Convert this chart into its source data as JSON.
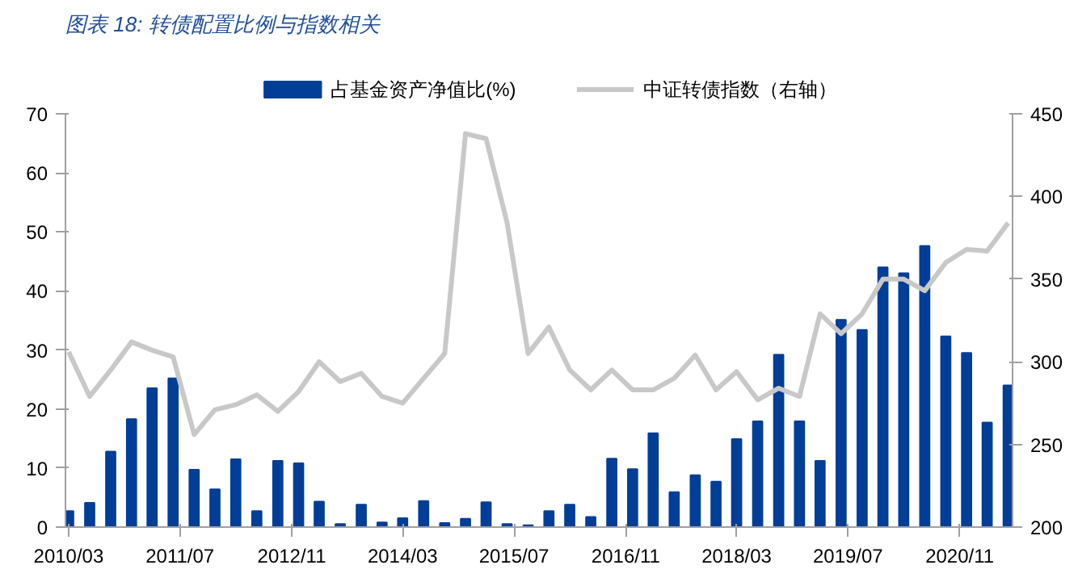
{
  "chart_data": {
    "type": "bar",
    "title": "图表 18:  转债配置比例与指数相关",
    "x": [
      "2010-03",
      "2010-06",
      "2010-09",
      "2010-12",
      "2011-03",
      "2011-06",
      "2011-09",
      "2011-12",
      "2012-03",
      "2012-06",
      "2012-09",
      "2012-12",
      "2013-03",
      "2013-06",
      "2013-09",
      "2013-12",
      "2014-03",
      "2014-06",
      "2014-09",
      "2014-12",
      "2015-03",
      "2015-06",
      "2015-09",
      "2015-12",
      "2016-03",
      "2016-06",
      "2016-09",
      "2016-12",
      "2017-03",
      "2017-06",
      "2017-09",
      "2017-12",
      "2018-03",
      "2018-06",
      "2018-09",
      "2018-12",
      "2019-03",
      "2019-06",
      "2019-09",
      "2019-12",
      "2020-03",
      "2020-06",
      "2020-09",
      "2020-12",
      "2021-03",
      "2021-06"
    ],
    "series": [
      {
        "name": "占基金资产净值比(%)",
        "color": "#003e97",
        "values": [
          2.7,
          4.1,
          12.8,
          18.3,
          23.5,
          25.2,
          9.7,
          6.4,
          11.5,
          2.7,
          11.2,
          10.8,
          4.3,
          0.5,
          3.8,
          0.8,
          1.5,
          4.4,
          0.7,
          1.4,
          4.2,
          0.5,
          0.3,
          2.7,
          3.8,
          1.7,
          11.6,
          9.8,
          15.9,
          5.9,
          8.8,
          7.7,
          14.9,
          17.9,
          29.2,
          17.9,
          11.2,
          35.1,
          33.4,
          44.0,
          43.0,
          47.6,
          32.3,
          29.5,
          17.7,
          24.0
        ]
      },
      {
        "name": "中证转债指数（右轴）",
        "type": "line",
        "axis": "y2",
        "color": "#c8c8c8",
        "values": [
          306,
          279,
          295,
          312,
          307,
          303,
          256,
          271,
          274,
          280,
          270,
          282,
          300,
          288,
          293,
          279,
          275,
          290,
          305,
          438,
          435,
          384,
          305,
          321,
          295,
          283,
          295,
          283,
          283,
          290,
          304,
          283,
          294,
          277,
          284,
          279,
          329,
          317,
          329,
          350,
          350,
          343,
          360,
          368,
          367,
          384
        ]
      }
    ],
    "xlim": [
      "2010-02-15",
      "2021-06-20"
    ],
    "xticks": [
      {
        "value": "2010-03",
        "label": "2010/03"
      },
      {
        "value": "2011-07",
        "label": "2011/07"
      },
      {
        "value": "2012-11",
        "label": "2012/11"
      },
      {
        "value": "2014-03",
        "label": "2014/03"
      },
      {
        "value": "2015-07",
        "label": "2015/07"
      },
      {
        "value": "2016-11",
        "label": "2016/11"
      },
      {
        "value": "2018-03",
        "label": "2018/03"
      },
      {
        "value": "2019-07",
        "label": "2019/07"
      },
      {
        "value": "2020-11",
        "label": "2020/11"
      }
    ],
    "ylim": [
      0,
      70
    ],
    "yticks": [
      0,
      10,
      20,
      30,
      40,
      50,
      60,
      70
    ],
    "y2lim": [
      200,
      450
    ],
    "y2ticks": [
      200,
      250,
      300,
      350,
      400,
      450
    ],
    "grid": false,
    "legend": "top"
  }
}
